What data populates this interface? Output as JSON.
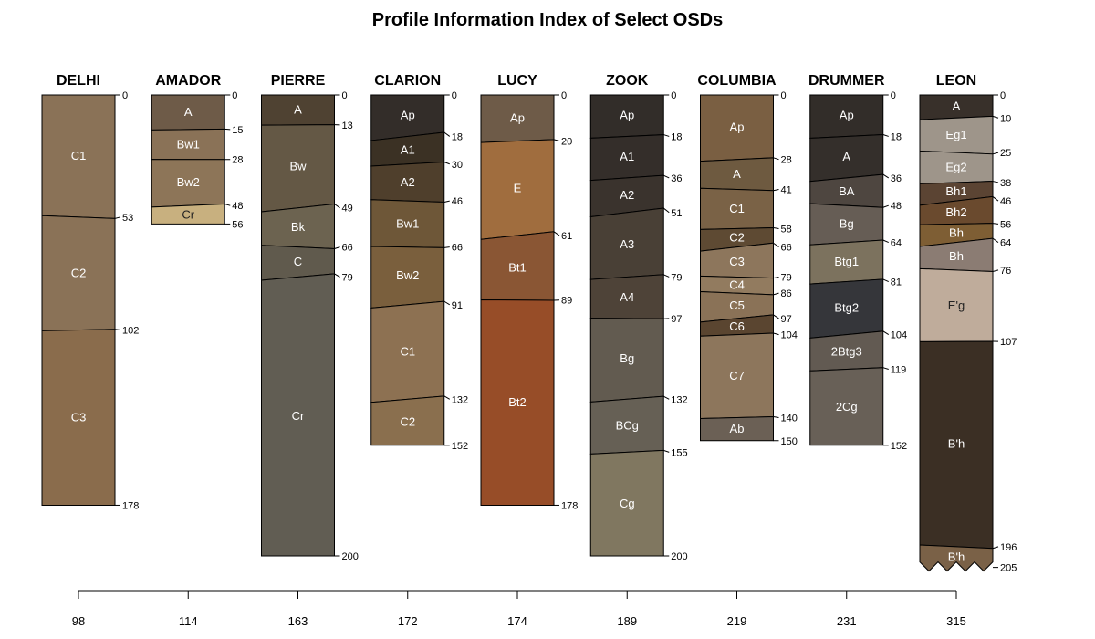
{
  "title": "Profile Information Index of Select OSDs",
  "profiles": [
    {
      "name": "DELHI",
      "x_value": "98",
      "bottom_depth": 178,
      "horizons": [
        {
          "name": "C1",
          "top": 0,
          "bottom": 53,
          "color": "#8a7257"
        },
        {
          "name": "C2",
          "top": 53,
          "bottom": 102,
          "color": "#8a7257"
        },
        {
          "name": "C3",
          "top": 102,
          "bottom": 178,
          "color": "#8a6c4c"
        }
      ],
      "ticks": [
        0,
        53,
        102,
        178
      ]
    },
    {
      "name": "AMADOR",
      "x_value": "114",
      "bottom_depth": 56,
      "horizons": [
        {
          "name": "A",
          "top": 0,
          "bottom": 15,
          "color": "#6e5b48"
        },
        {
          "name": "Bw1",
          "top": 15,
          "bottom": 28,
          "color": "#8a7257"
        },
        {
          "name": "Bw2",
          "top": 28,
          "bottom": 48,
          "color": "#8d7558"
        },
        {
          "name": "Cr",
          "top": 48,
          "bottom": 56,
          "color": "#c8b07f"
        }
      ],
      "ticks": [
        0,
        15,
        28,
        48,
        56
      ]
    },
    {
      "name": "PIERRE",
      "x_value": "163",
      "bottom_depth": 200,
      "horizons": [
        {
          "name": "A",
          "top": 0,
          "bottom": 13,
          "color": "#4f4232"
        },
        {
          "name": "Bw",
          "top": 13,
          "bottom": 49,
          "color": "#645845"
        },
        {
          "name": "Bk",
          "top": 49,
          "bottom": 66,
          "color": "#6c6350"
        },
        {
          "name": "C",
          "top": 66,
          "bottom": 79,
          "color": "#605a4d"
        },
        {
          "name": "Cr",
          "top": 79,
          "bottom": 200,
          "color": "#615d53"
        }
      ],
      "ticks": [
        0,
        13,
        49,
        66,
        79,
        200
      ]
    },
    {
      "name": "CLARION",
      "x_value": "172",
      "bottom_depth": 152,
      "horizons": [
        {
          "name": "Ap",
          "top": 0,
          "bottom": 18,
          "color": "#332d29"
        },
        {
          "name": "A1",
          "top": 18,
          "bottom": 30,
          "color": "#3b3124"
        },
        {
          "name": "A2",
          "top": 30,
          "bottom": 46,
          "color": "#4f3f2c"
        },
        {
          "name": "Bw1",
          "top": 46,
          "bottom": 66,
          "color": "#6e5738"
        },
        {
          "name": "Bw2",
          "top": 66,
          "bottom": 91,
          "color": "#7a5f3d"
        },
        {
          "name": "C1",
          "top": 91,
          "bottom": 132,
          "color": "#8d7152"
        },
        {
          "name": "C2",
          "top": 132,
          "bottom": 152,
          "color": "#8a6f4e"
        }
      ],
      "ticks": [
        0,
        18,
        30,
        46,
        66,
        91,
        132,
        152
      ]
    },
    {
      "name": "LUCY",
      "x_value": "174",
      "bottom_depth": 178,
      "horizons": [
        {
          "name": "Ap",
          "top": 0,
          "bottom": 20,
          "color": "#6e5b48"
        },
        {
          "name": "E",
          "top": 20,
          "bottom": 61,
          "color": "#a06d3e"
        },
        {
          "name": "Bt1",
          "top": 61,
          "bottom": 89,
          "color": "#8a5634"
        },
        {
          "name": "Bt2",
          "top": 89,
          "bottom": 178,
          "color": "#974d28"
        }
      ],
      "ticks": [
        0,
        20,
        61,
        89,
        178
      ]
    },
    {
      "name": "ZOOK",
      "x_value": "189",
      "bottom_depth": 200,
      "horizons": [
        {
          "name": "Ap",
          "top": 0,
          "bottom": 18,
          "color": "#322d29"
        },
        {
          "name": "A1",
          "top": 18,
          "bottom": 36,
          "color": "#342e2a"
        },
        {
          "name": "A2",
          "top": 36,
          "bottom": 51,
          "color": "#3a332d"
        },
        {
          "name": "A3",
          "top": 51,
          "bottom": 79,
          "color": "#494036"
        },
        {
          "name": "A4",
          "top": 79,
          "bottom": 97,
          "color": "#4e4338"
        },
        {
          "name": "Bg",
          "top": 97,
          "bottom": 132,
          "color": "#625b50"
        },
        {
          "name": "BCg",
          "top": 132,
          "bottom": 155,
          "color": "#666055"
        },
        {
          "name": "Cg",
          "top": 155,
          "bottom": 200,
          "color": "#807760"
        }
      ],
      "ticks": [
        0,
        18,
        36,
        51,
        79,
        97,
        132,
        155,
        200
      ]
    },
    {
      "name": "COLUMBIA",
      "x_value": "219",
      "bottom_depth": 150,
      "horizons": [
        {
          "name": "Ap",
          "top": 0,
          "bottom": 28,
          "color": "#7a5f42"
        },
        {
          "name": "A",
          "top": 28,
          "bottom": 41,
          "color": "#6e5a40"
        },
        {
          "name": "C1",
          "top": 41,
          "bottom": 58,
          "color": "#7a6246"
        },
        {
          "name": "C2",
          "top": 58,
          "bottom": 66,
          "color": "#5e4a33"
        },
        {
          "name": "C3",
          "top": 66,
          "bottom": 79,
          "color": "#8d765c"
        },
        {
          "name": "C4",
          "top": 79,
          "bottom": 86,
          "color": "#927b5f"
        },
        {
          "name": "C5",
          "top": 86,
          "bottom": 97,
          "color": "#8a7257"
        },
        {
          "name": "C6",
          "top": 97,
          "bottom": 104,
          "color": "#5a4530"
        },
        {
          "name": "C7",
          "top": 104,
          "bottom": 140,
          "color": "#8d765c"
        },
        {
          "name": "Ab",
          "top": 140,
          "bottom": 150,
          "color": "#6b6055"
        }
      ],
      "ticks": [
        0,
        28,
        41,
        58,
        66,
        79,
        86,
        97,
        104,
        140,
        150
      ]
    },
    {
      "name": "DRUMMER",
      "x_value": "231",
      "bottom_depth": 152,
      "horizons": [
        {
          "name": "Ap",
          "top": 0,
          "bottom": 18,
          "color": "#322d29"
        },
        {
          "name": "A",
          "top": 18,
          "bottom": 36,
          "color": "#342f2b"
        },
        {
          "name": "BA",
          "top": 36,
          "bottom": 48,
          "color": "#4e4640"
        },
        {
          "name": "Bg",
          "top": 48,
          "bottom": 64,
          "color": "#665d55"
        },
        {
          "name": "Btg1",
          "top": 64,
          "bottom": 81,
          "color": "#7c725e"
        },
        {
          "name": "Btg2",
          "top": 81,
          "bottom": 104,
          "color": "#35363a"
        },
        {
          "name": "2Btg3",
          "top": 104,
          "bottom": 119,
          "color": "#625a52"
        },
        {
          "name": "2Cg",
          "top": 119,
          "bottom": 152,
          "color": "#686057"
        }
      ],
      "ticks": [
        0,
        18,
        36,
        48,
        64,
        81,
        104,
        119,
        152
      ]
    },
    {
      "name": "LEON",
      "x_value": "315",
      "bottom_depth": 205,
      "truncated": true,
      "horizons": [
        {
          "name": "A",
          "top": 0,
          "bottom": 10,
          "color": "#38302a"
        },
        {
          "name": "Eg1",
          "top": 10,
          "bottom": 25,
          "color": "#9e958a"
        },
        {
          "name": "Eg2",
          "top": 25,
          "bottom": 38,
          "color": "#9e958a"
        },
        {
          "name": "Bh1",
          "top": 38,
          "bottom": 46,
          "color": "#5b4433"
        },
        {
          "name": "Bh2",
          "top": 46,
          "bottom": 56,
          "color": "#6a4a2e"
        },
        {
          "name": "Bh",
          "top": 56,
          "bottom": 64,
          "color": "#7e5e34"
        },
        {
          "name": "Bh",
          "top": 64,
          "bottom": 76,
          "color": "#8b7c73"
        },
        {
          "name": "E'g",
          "top": 76,
          "bottom": 107,
          "color": "#bfac9b"
        },
        {
          "name": "B'h",
          "top": 107,
          "bottom": 196,
          "color": "#3b2f24"
        },
        {
          "name": "B'h",
          "top": 196,
          "bottom": 205,
          "color": "#7a6147"
        }
      ],
      "ticks": [
        0,
        10,
        25,
        38,
        46,
        56,
        64,
        76,
        107,
        196,
        205
      ]
    }
  ]
}
